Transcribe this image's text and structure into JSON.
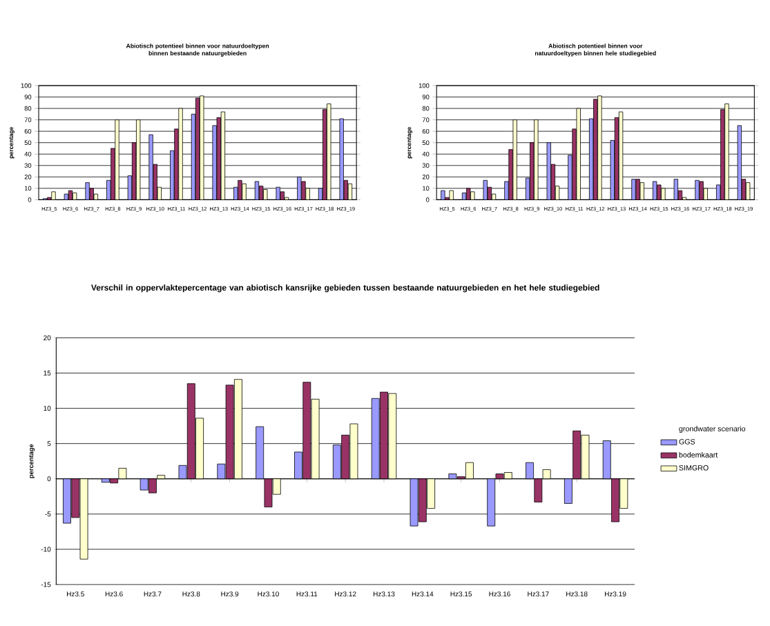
{
  "chart_data": [
    {
      "type": "bar",
      "title": "Abiotisch potentieel binnen voor natuurdoeltypen binnen bestaande natuurgebieden",
      "ylabel": "percentage",
      "categories": [
        "HZ3_5",
        "HZ3_6",
        "HZ3_7",
        "HZ3_8",
        "HZ3_9",
        "HZ3_10",
        "HZ3_11",
        "HZ3_12",
        "HZ3_13",
        "HZ3_14",
        "HZ3_15",
        "HZ3_16",
        "HZ3_17",
        "HZ3_18",
        "HZ3_19"
      ],
      "series": [
        {
          "color": "#9999ff",
          "values": [
            1,
            5,
            15,
            17,
            21,
            57,
            43,
            75,
            65,
            11,
            16,
            11,
            20,
            10,
            71
          ]
        },
        {
          "color": "#993366",
          "values": [
            2,
            8,
            10,
            45,
            50,
            31,
            62,
            89,
            72,
            17,
            12,
            7,
            16,
            79,
            17
          ]
        },
        {
          "color": "#ffffcc",
          "values": [
            7,
            6,
            5,
            70,
            70,
            11,
            80,
            91,
            77,
            14,
            9,
            2,
            10,
            84,
            14
          ]
        }
      ],
      "ylim": [
        0,
        100
      ],
      "yticks": [
        0,
        10,
        20,
        30,
        40,
        50,
        60,
        70,
        80,
        90,
        100
      ],
      "grid": "y"
    },
    {
      "type": "bar",
      "title": "Abiotisch potentieel binnen voor natuurdoeltypen binnen hele studiegebied",
      "ylabel": "percentage",
      "categories": [
        "HZ3_5",
        "HZ3_6",
        "HZ3_7",
        "HZ3_8",
        "HZ3_9",
        "HZ3_10",
        "HZ3_11",
        "HZ3_12",
        "HZ3_13",
        "HZ3_14",
        "HZ3_15",
        "HZ3_16",
        "HZ3_17",
        "HZ3_18",
        "HZ3_19"
      ],
      "series": [
        {
          "color": "#9999ff",
          "values": [
            8,
            6,
            17,
            16,
            19,
            50,
            39,
            71,
            52,
            18,
            16,
            18,
            17,
            13,
            65
          ]
        },
        {
          "color": "#993366",
          "values": [
            2,
            10,
            11,
            44,
            50,
            31,
            62,
            88,
            72,
            18,
            13,
            8,
            16,
            79,
            18
          ]
        },
        {
          "color": "#ffffcc",
          "values": [
            8,
            7,
            5,
            70,
            70,
            12,
            80,
            91,
            77,
            15,
            10,
            2,
            10,
            84,
            15
          ]
        }
      ],
      "ylim": [
        0,
        100
      ],
      "yticks": [
        0,
        10,
        20,
        30,
        40,
        50,
        60,
        70,
        80,
        90,
        100
      ],
      "grid": "y"
    },
    {
      "type": "bar",
      "title": "Verschil in oppervlaktepercentage van abiotisch kansrijke gebieden tussen bestaande natuurgebieden en het hele studiegebied",
      "ylabel": "percentage",
      "categories": [
        "Hz3.5",
        "Hz3.6",
        "Hz3.7",
        "Hz3.8",
        "Hz3.9",
        "Hz3.10",
        "Hz3.11",
        "Hz3.12",
        "Hz3.13",
        "Hz3.14",
        "Hz3.15",
        "Hz3.16",
        "Hz3.17",
        "Hz3.18",
        "Hz3.19"
      ],
      "series": [
        {
          "name": "GGS",
          "color": "#9999ff",
          "values": [
            -6.3,
            -0.5,
            -1.6,
            1.9,
            2.1,
            7.4,
            3.8,
            4.8,
            11.4,
            -6.7,
            0.7,
            -6.7,
            2.3,
            -3.5,
            5.4
          ]
        },
        {
          "name": "bodemkaart",
          "color": "#993366",
          "values": [
            -5.5,
            -0.6,
            -2.0,
            13.5,
            13.3,
            -4.0,
            13.7,
            6.2,
            12.3,
            -6.1,
            0.3,
            0.7,
            -3.3,
            6.8,
            -6.1
          ]
        },
        {
          "name": "SIMGRO",
          "color": "#ffffcc",
          "values": [
            -11.4,
            1.5,
            0.5,
            8.6,
            14.1,
            -2.2,
            11.3,
            7.8,
            12.1,
            -4.2,
            2.3,
            0.9,
            1.3,
            6.2,
            -4.2
          ]
        }
      ],
      "ylim": [
        -15,
        20
      ],
      "yticks": [
        -15,
        -10,
        -5,
        0,
        5,
        10,
        15,
        20
      ],
      "grid": "y",
      "legend": "right",
      "legend_title": "grondwater scenario"
    }
  ]
}
